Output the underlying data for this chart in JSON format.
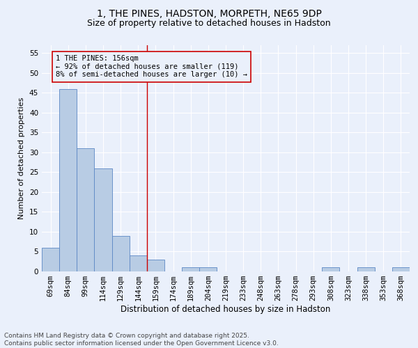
{
  "title": "1, THE PINES, HADSTON, MORPETH, NE65 9DP",
  "subtitle": "Size of property relative to detached houses in Hadston",
  "xlabel": "Distribution of detached houses by size in Hadston",
  "ylabel": "Number of detached properties",
  "categories": [
    "69sqm",
    "84sqm",
    "99sqm",
    "114sqm",
    "129sqm",
    "144sqm",
    "159sqm",
    "174sqm",
    "189sqm",
    "204sqm",
    "219sqm",
    "233sqm",
    "248sqm",
    "263sqm",
    "278sqm",
    "293sqm",
    "308sqm",
    "323sqm",
    "338sqm",
    "353sqm",
    "368sqm"
  ],
  "values": [
    6,
    46,
    31,
    26,
    9,
    4,
    3,
    0,
    1,
    1,
    0,
    0,
    0,
    0,
    0,
    0,
    1,
    0,
    1,
    0,
    1
  ],
  "bar_color": "#b8cce4",
  "bar_edge_color": "#5b87c5",
  "background_color": "#eaf0fb",
  "grid_color": "#ffffff",
  "property_line_x": 5.5,
  "property_line_color": "#cc0000",
  "annotation_text": "1 THE PINES: 156sqm\n← 92% of detached houses are smaller (119)\n8% of semi-detached houses are larger (10) →",
  "annotation_box_color": "#cc0000",
  "ylim": [
    0,
    57
  ],
  "yticks": [
    0,
    5,
    10,
    15,
    20,
    25,
    30,
    35,
    40,
    45,
    50,
    55
  ],
  "footnote": "Contains HM Land Registry data © Crown copyright and database right 2025.\nContains public sector information licensed under the Open Government Licence v3.0.",
  "title_fontsize": 10,
  "subtitle_fontsize": 9,
  "xlabel_fontsize": 8.5,
  "ylabel_fontsize": 8,
  "tick_fontsize": 7.5,
  "annotation_fontsize": 7.5,
  "footnote_fontsize": 6.5
}
